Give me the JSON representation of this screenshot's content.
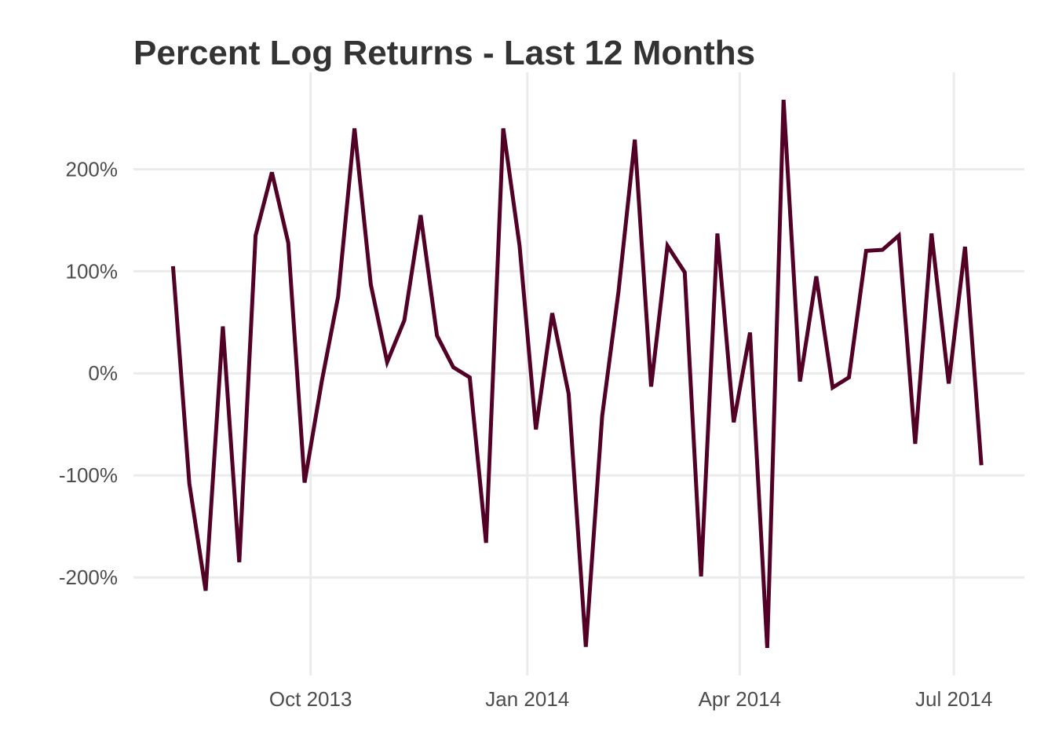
{
  "chart_data": {
    "type": "line",
    "title": "Percent Log Returns - Last 12 Months",
    "x": [
      2013.588,
      2013.607,
      2013.626,
      2013.646,
      2013.665,
      2013.684,
      2013.703,
      2013.722,
      2013.741,
      2013.761,
      2013.78,
      2013.799,
      2013.818,
      2013.837,
      2013.857,
      2013.876,
      2013.895,
      2013.914,
      2013.933,
      2013.952,
      2013.972,
      2013.991,
      2014.01,
      2014.029,
      2014.048,
      2014.068,
      2014.087,
      2014.106,
      2014.125,
      2014.144,
      2014.163,
      2014.183,
      2014.202,
      2014.221,
      2014.24,
      2014.259,
      2014.279,
      2014.298,
      2014.317,
      2014.336,
      2014.355,
      2014.374,
      2014.394,
      2014.413,
      2014.432,
      2014.451,
      2014.47,
      2014.49,
      2014.509,
      2014.528
    ],
    "series": [
      {
        "color": "#520026",
        "values": [
          105,
          -108,
          -213,
          46,
          -185,
          135,
          197,
          128,
          -107,
          -8,
          75,
          240,
          87,
          11,
          52,
          155,
          37,
          6,
          -4,
          -166,
          240,
          125,
          -55,
          59,
          -20,
          -268,
          -42,
          80,
          229,
          -13,
          125,
          99,
          -199,
          137,
          -48,
          40,
          -269,
          268,
          -8,
          95,
          -14,
          -4,
          120,
          121,
          135,
          -69,
          137,
          -10,
          124,
          -90
        ]
      }
    ],
    "xlim": [
      2013.542,
      2014.578
    ],
    "xticks": [
      {
        "value": 2013.748,
        "label": "Oct 2013"
      },
      {
        "value": 2014.0,
        "label": "Jan 2014"
      },
      {
        "value": 2014.247,
        "label": "Apr 2014"
      },
      {
        "value": 2014.496,
        "label": "Jul 2014"
      }
    ],
    "ylim": [
      -296,
      295
    ],
    "yticks": [
      {
        "value": -200,
        "label": "-200%"
      },
      {
        "value": -100,
        "label": "-100%"
      },
      {
        "value": 0,
        "label": "0%"
      },
      {
        "value": 100,
        "label": "100%"
      },
      {
        "value": 200,
        "label": "200%"
      }
    ],
    "grid": true
  }
}
